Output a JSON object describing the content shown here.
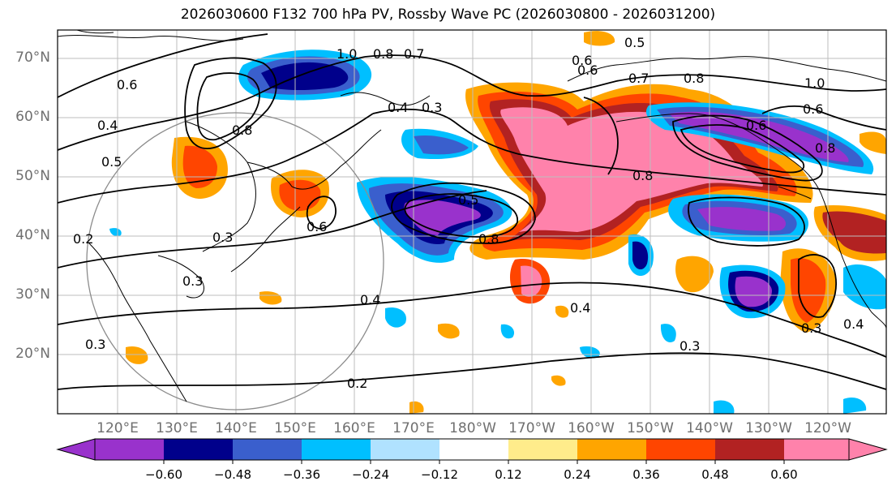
{
  "title": "2026030600 F132 700 hPa PV, Rossby Wave PC (2026030800 - 2026031200)",
  "lat_labels": [
    "70°N",
    "60°N",
    "50°N",
    "40°N",
    "30°N",
    "20°N"
  ],
  "lon_labels": [
    "120°E",
    "130°E",
    "140°E",
    "150°E",
    "160°E",
    "170°E",
    "180°W",
    "170°W",
    "160°W",
    "150°W",
    "140°W",
    "130°W",
    "120°W"
  ],
  "contour_labels": [
    "1.0",
    "0.8",
    "0.7",
    "0.6",
    "0.5",
    "0.4",
    "0.3",
    "0.8",
    "0.6",
    "0.5",
    "0.4",
    "0.2",
    "0.3",
    "0.6",
    "0.3",
    "0.4",
    "0.5",
    "0.8",
    "0.6",
    "0.8",
    "0.7",
    "0.6",
    "1.0",
    "0.6",
    "0.8",
    "0.8",
    "0.4",
    "0.3",
    "0.2",
    "0.4",
    "0.3",
    "0.3"
  ],
  "colorbar": {
    "tick_labels": [
      "−0.60",
      "−0.48",
      "−0.36",
      "−0.24",
      "−0.12",
      "0.12",
      "0.24",
      "0.36",
      "0.48",
      "0.60"
    ],
    "colors": [
      "#9932cc",
      "#00008b",
      "#3a5fcd",
      "#00bfff",
      "#b0e2ff",
      "#ffffff",
      "#ffec8b",
      "#ffa500",
      "#ff4500",
      "#b22222",
      "#ff82ab"
    ]
  }
}
